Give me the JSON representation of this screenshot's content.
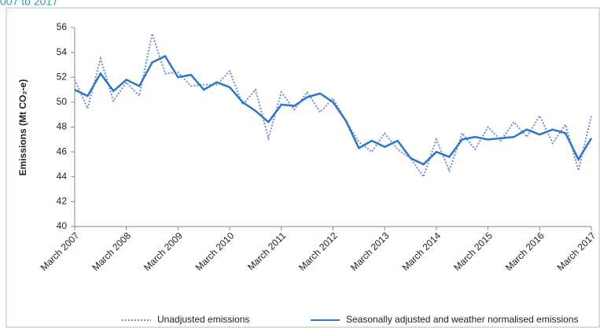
{
  "chart_data": {
    "type": "line",
    "title": "007 to 2017",
    "y_label": "Emissions (Mt CO₂-e)",
    "categories": [
      "March 2007",
      null,
      null,
      null,
      "March 2008",
      null,
      null,
      null,
      "March 2009",
      null,
      null,
      null,
      "March 2010",
      null,
      null,
      null,
      "March 2011",
      null,
      null,
      null,
      "March 2012",
      null,
      null,
      null,
      "March 2013",
      null,
      null,
      null,
      "March 2014",
      null,
      null,
      null,
      "March 2015",
      null,
      null,
      null,
      "March 2016",
      null,
      null,
      null,
      "March 2017"
    ],
    "series": [
      {
        "name": "Unadjusted emissions",
        "color": "#6f8fc9",
        "style": "dotted",
        "values": [
          51.8,
          49.5,
          53.5,
          50.1,
          51.6,
          50.5,
          55.5,
          52.3,
          52.4,
          51.3,
          51.4,
          51.4,
          52.5,
          49.8,
          51.0,
          47.1,
          50.8,
          49.4,
          50.8,
          49.2,
          50.3,
          48.5,
          46.8,
          46.0,
          47.5,
          46.2,
          45.5,
          44.0,
          47.0,
          44.5,
          47.5,
          46.2,
          48.0,
          46.9,
          48.4,
          47.2,
          48.9,
          46.7,
          48.2,
          44.5,
          48.9
        ]
      },
      {
        "name": "Seasonally adjusted and weather normalised emissions",
        "color": "#2e74c8",
        "style": "solid",
        "values": [
          51.0,
          50.5,
          52.3,
          50.9,
          51.8,
          51.3,
          53.2,
          53.7,
          52.0,
          52.2,
          51.0,
          51.6,
          51.2,
          50.0,
          49.3,
          48.4,
          49.8,
          49.7,
          50.4,
          50.7,
          50.0,
          48.5,
          46.3,
          46.9,
          46.4,
          46.9,
          45.5,
          45.0,
          46.0,
          45.6,
          47.0,
          47.2,
          47.0,
          47.1,
          47.2,
          47.8,
          47.4,
          47.8,
          47.5,
          45.4,
          47.1
        ]
      }
    ],
    "ylim": [
      40,
      56
    ],
    "yticks": [
      40,
      42,
      44,
      46,
      48,
      50,
      52,
      54,
      56
    ],
    "grid": false,
    "legend": "bottom"
  }
}
